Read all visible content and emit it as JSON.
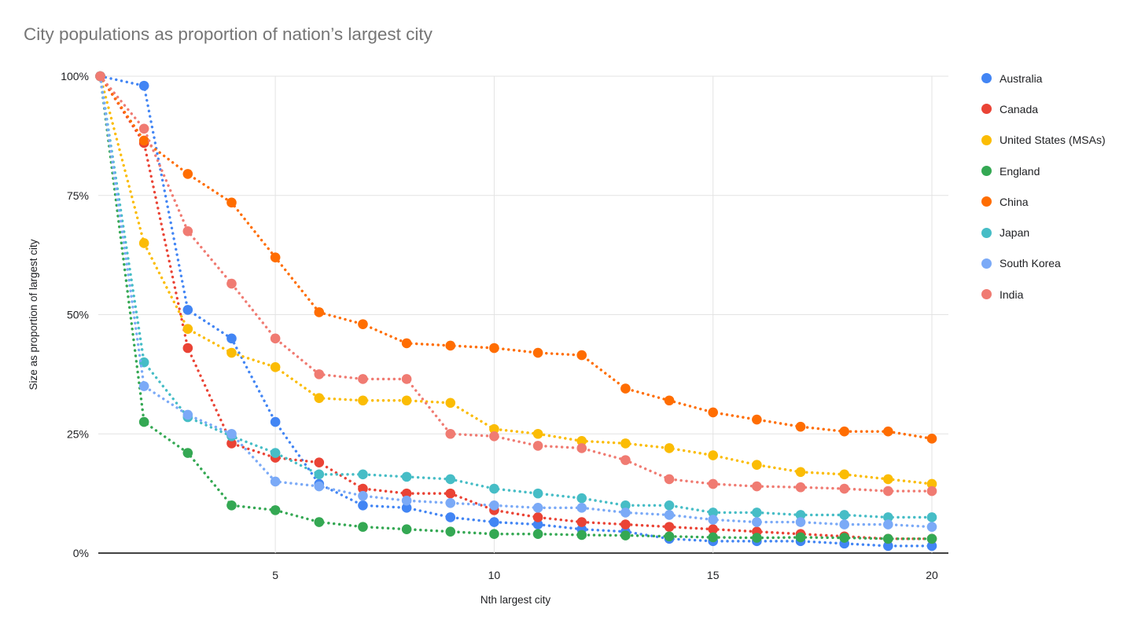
{
  "title": "City populations as proportion of nation’s largest city",
  "colors": {
    "background": "#ffffff",
    "title_text": "#757575",
    "axis_text": "#202124",
    "grid_line": "#e3e3e3",
    "axis_line": "#424242"
  },
  "chart_data": {
    "type": "line",
    "title": "City populations as proportion of nation’s largest city",
    "xlabel": "Nth largest city",
    "ylabel": "Size as proportion of largest city",
    "line_style": "dotted",
    "markers": true,
    "grid": true,
    "legend_position": "right",
    "xlim": [
      1,
      20
    ],
    "ylim": [
      0,
      100
    ],
    "x": [
      1,
      2,
      3,
      4,
      5,
      6,
      7,
      8,
      9,
      10,
      11,
      12,
      13,
      14,
      15,
      16,
      17,
      18,
      19,
      20
    ],
    "x_ticks": [
      5,
      10,
      15,
      20
    ],
    "y_ticks": [
      {
        "value": 100,
        "label": "100%"
      },
      {
        "value": 75,
        "label": "75%"
      },
      {
        "value": 50,
        "label": "50%"
      },
      {
        "value": 25,
        "label": "25%"
      },
      {
        "value": 0,
        "label": "0%"
      }
    ],
    "series": [
      {
        "name": "Australia",
        "color": "#4285F4",
        "values": [
          100,
          98,
          51,
          45,
          27.5,
          14.5,
          10,
          9.5,
          7.5,
          6.5,
          6,
          5,
          4.5,
          3,
          2.5,
          2.5,
          2.5,
          2,
          1.5,
          1.5
        ]
      },
      {
        "name": "Canada",
        "color": "#EA4335",
        "values": [
          100,
          86,
          43,
          23,
          20,
          19,
          13.5,
          12.5,
          12.5,
          9,
          7.5,
          6.5,
          6,
          5.5,
          5,
          4.5,
          4,
          3.5,
          3,
          3
        ]
      },
      {
        "name": "United States (MSAs)",
        "color": "#FBBC04",
        "values": [
          100,
          65,
          47,
          42,
          39,
          32.5,
          32,
          32,
          31.5,
          26,
          25,
          23.5,
          23,
          22,
          20.5,
          18.5,
          17,
          16.5,
          15.5,
          14.5
        ]
      },
      {
        "name": "England",
        "color": "#34A853",
        "values": [
          100,
          27.5,
          21,
          10,
          9,
          6.5,
          5.5,
          5,
          4.5,
          4,
          4,
          3.8,
          3.7,
          3.5,
          3.3,
          3.2,
          3.3,
          3.2,
          3,
          3
        ]
      },
      {
        "name": "China",
        "color": "#FF6D01",
        "values": [
          100,
          86.5,
          79.5,
          73.5,
          62,
          50.5,
          48,
          44,
          43.5,
          43,
          42,
          41.5,
          34.5,
          32,
          29.5,
          28,
          26.5,
          25.5,
          25.5,
          24
        ]
      },
      {
        "name": "Japan",
        "color": "#46BDC6",
        "values": [
          100,
          40,
          28.5,
          24.5,
          21,
          16.5,
          16.5,
          16,
          15.5,
          13.5,
          12.5,
          11.5,
          10,
          10,
          8.5,
          8.5,
          8,
          8,
          7.5,
          7.5
        ]
      },
      {
        "name": "South Korea",
        "color": "#7BAAF7",
        "values": [
          100,
          35,
          29,
          25,
          15,
          14,
          12,
          11,
          10.5,
          10,
          9.5,
          9.5,
          8.5,
          8,
          7,
          6.5,
          6.5,
          6,
          6,
          5.5
        ]
      },
      {
        "name": "India",
        "color": "#F07B72",
        "values": [
          100,
          89,
          67.5,
          56.5,
          45,
          37.5,
          36.5,
          36.5,
          25,
          24.5,
          22.5,
          22,
          19.5,
          15.5,
          14.5,
          14,
          13.8,
          13.5,
          13,
          13
        ]
      }
    ]
  }
}
